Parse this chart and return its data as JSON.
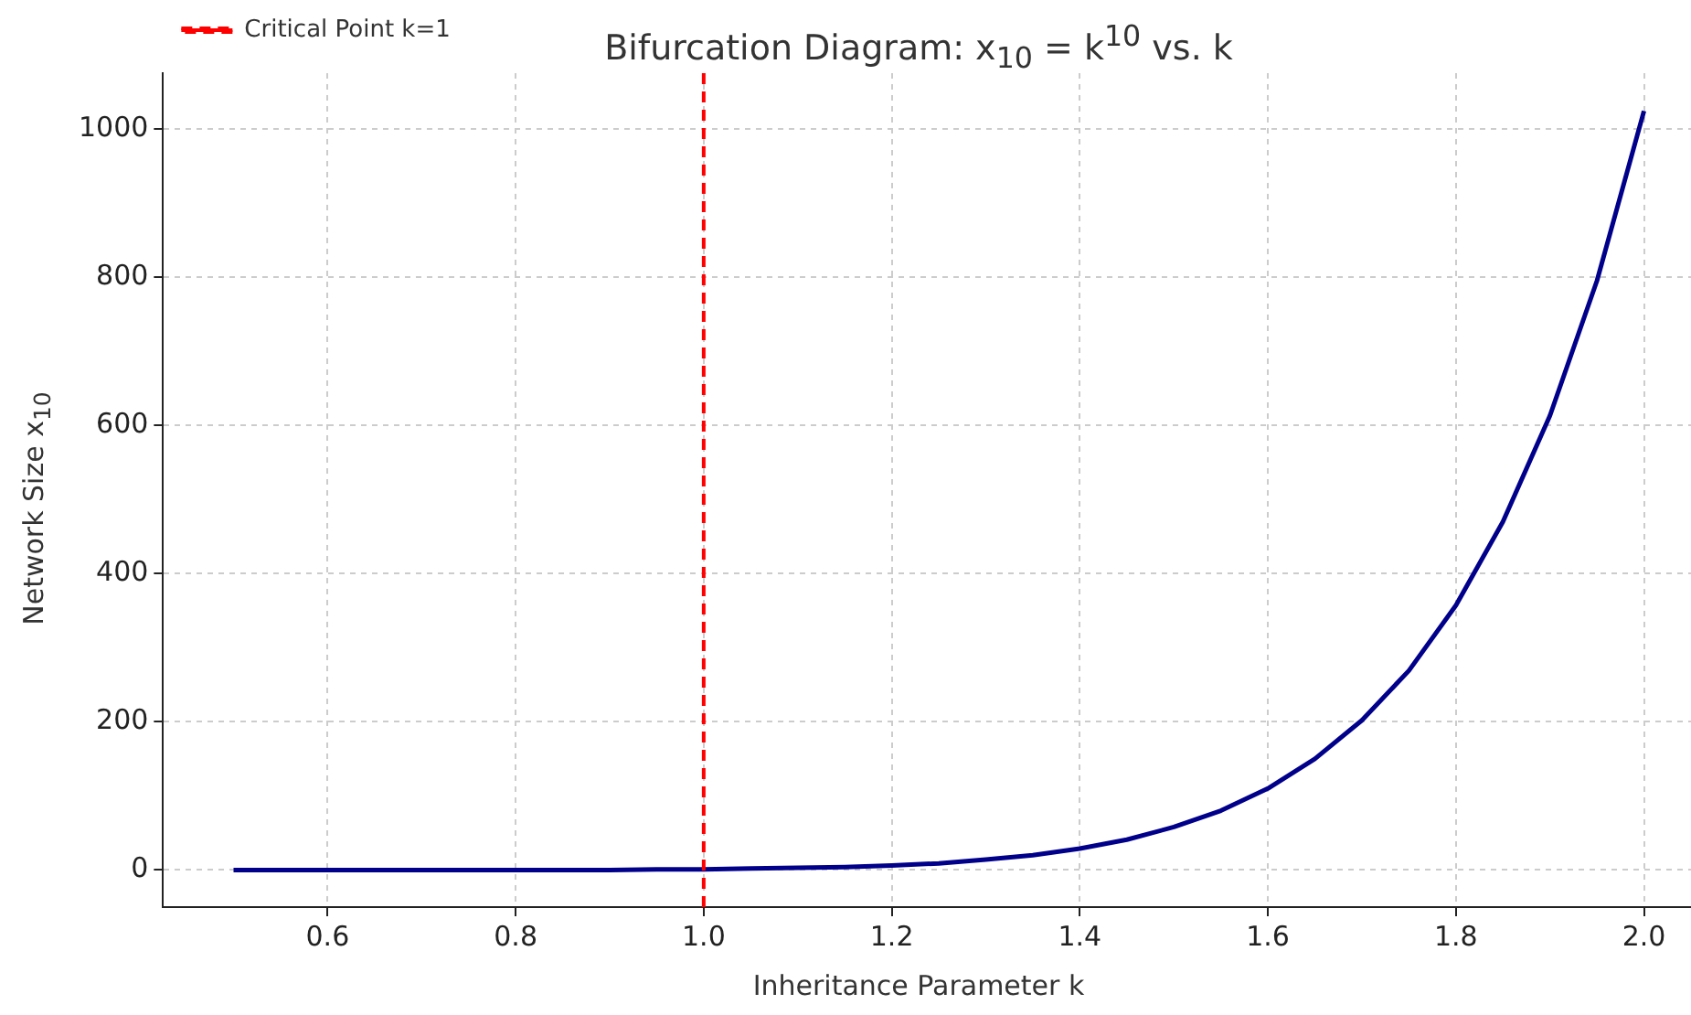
{
  "chart_data": {
    "type": "line",
    "title": "Bifurcation Diagram: x$_{10}$ = k$^{10}$ vs. k",
    "xlabel": "Inheritance Parameter k",
    "ylabel": "Network Size x$_{10}$",
    "x": [
      0.5,
      0.55,
      0.6,
      0.65,
      0.7,
      0.75,
      0.8,
      0.85,
      0.9,
      0.95,
      1.0,
      1.05,
      1.1,
      1.15,
      1.2,
      1.25,
      1.3,
      1.35,
      1.4,
      1.45,
      1.5,
      1.55,
      1.6,
      1.65,
      1.7,
      1.75,
      1.8,
      1.85,
      1.9,
      1.95,
      2.0
    ],
    "series": [
      {
        "color": "#00008b",
        "values": [
          0,
          0,
          0,
          0,
          0,
          0,
          0,
          0,
          0,
          1,
          1,
          2,
          3,
          4,
          6,
          9,
          14,
          20,
          29,
          41,
          58,
          80,
          110,
          150,
          202,
          269,
          357,
          470,
          613,
          795,
          1024
        ]
      }
    ],
    "xlim": [
      0.425,
      2.05
    ],
    "xticks": [
      0.6,
      0.8,
      {
        "value": 1,
        "label": "1.0"
      },
      1.2,
      1.4,
      1.6,
      1.8,
      {
        "value": 2,
        "label": "2.0"
      }
    ],
    "ylim": [
      -50,
      1075
    ],
    "yticks": [
      0,
      200,
      400,
      600,
      800,
      1000
    ],
    "ref_lines": [
      {
        "axis": "x",
        "value": 1,
        "label": "Critical Point k=1",
        "color": "#ff0000",
        "line_style": "dashed"
      }
    ],
    "grid": true,
    "legend": "top left",
    "line_style": "solid",
    "marker": "none"
  }
}
